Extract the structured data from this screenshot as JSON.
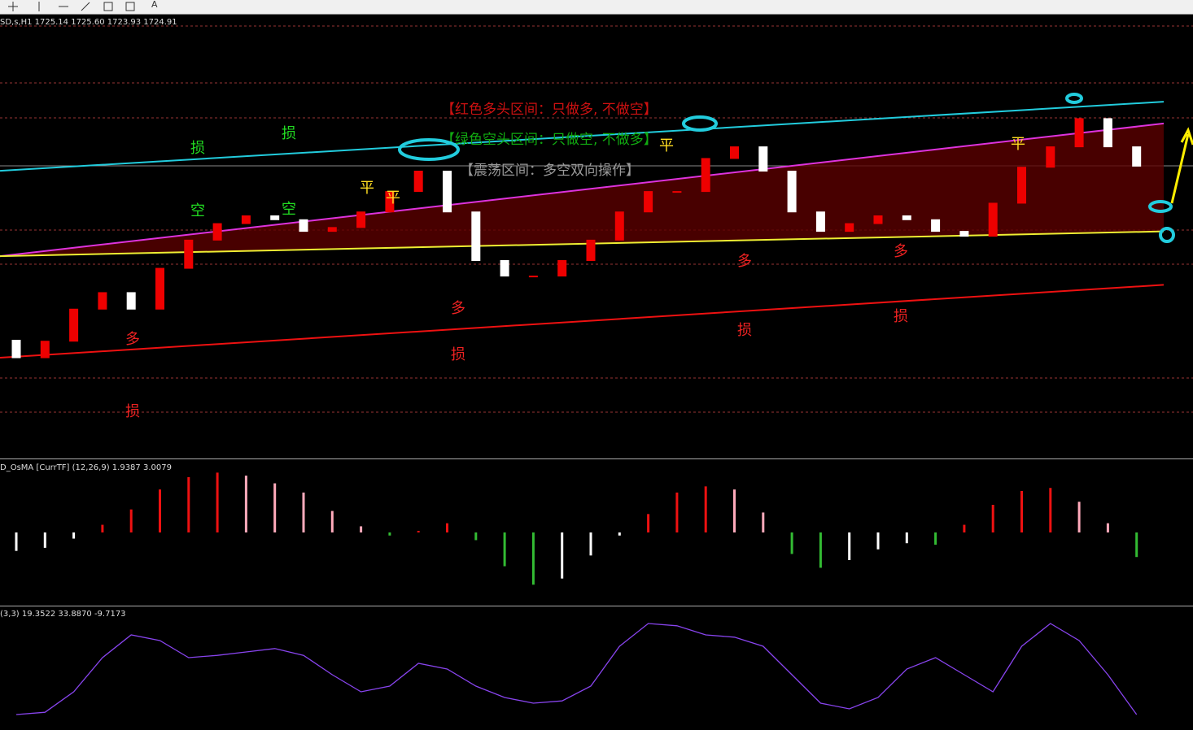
{
  "toolbar": {
    "text_tool": "A"
  },
  "main_panel": {
    "legend": "SD,s,H1  1725.14 1725.60 1723.93 1724.91",
    "ylim": [
      1695,
      1740.5
    ],
    "open": [
      1707.0,
      1705.2,
      1706.9,
      1710.2,
      1711.9,
      1710.2,
      1714.4,
      1717.3,
      1719.0,
      1719.8,
      1719.4,
      1718.2,
      1718.6,
      1720.2,
      1722.3,
      1724.4,
      1720.2,
      1715.2,
      1713.6,
      1713.6,
      1715.2,
      1717.3,
      1720.2,
      1722.3,
      1722.3,
      1725.7,
      1726.9,
      1724.4,
      1720.2,
      1718.2,
      1719.0,
      1719.8,
      1719.4,
      1718.2,
      1717.7,
      1721.1,
      1724.8,
      1726.9,
      1729.8,
      1726.9
    ],
    "close": [
      1705.2,
      1706.9,
      1710.2,
      1711.9,
      1710.2,
      1714.4,
      1717.3,
      1719.0,
      1719.8,
      1719.4,
      1718.2,
      1718.6,
      1720.2,
      1722.3,
      1724.4,
      1720.2,
      1715.2,
      1713.6,
      1713.6,
      1715.2,
      1717.3,
      1720.2,
      1722.3,
      1722.3,
      1725.7,
      1726.9,
      1724.4,
      1720.2,
      1718.2,
      1719.0,
      1719.8,
      1719.4,
      1718.2,
      1717.7,
      1721.1,
      1724.8,
      1726.9,
      1729.8,
      1726.9,
      1724.91
    ],
    "bands": [
      {
        "color": "#22ccdd",
        "values": [
          1724.43,
          1731.54
        ]
      },
      {
        "color": "#ee1111",
        "values": [
          1705.2,
          1712.7
        ]
      },
      {
        "color": "#dd33dd",
        "values": [
          1715.65,
          1729.3
        ]
      },
      {
        "color": "#eeee33",
        "values": [
          1715.65,
          1718.2
        ]
      }
    ]
  },
  "annotations": {
    "bull_zone": "【红色多头区间：只做多, 不做空】",
    "bear_zone": "【绿色空头区间：只做空, 不做多】",
    "range_zone": "【震荡区间：多空双向操作】",
    "labels": [
      "损",
      "损",
      "损",
      "损",
      "损",
      "损",
      "多",
      "多",
      "多",
      "多",
      "空",
      "空",
      "平",
      "平",
      "平",
      "平"
    ]
  },
  "osma_panel": {
    "legend": "D_OsMA [CurrTF] (12,26,9) 1.9387 3.0079",
    "ylim": [
      -4.5,
      4.5
    ],
    "values": [
      -1.2,
      -1.0,
      -0.4,
      0.5,
      1.5,
      2.8,
      3.6,
      3.9,
      3.7,
      3.2,
      2.6,
      1.4,
      0.4,
      -0.2,
      0.1,
      0.6,
      -0.5,
      -2.2,
      -3.4,
      -3.0,
      -1.5,
      -0.2,
      1.2,
      2.6,
      3.0,
      2.8,
      1.3,
      -1.4,
      -2.3,
      -1.8,
      -1.1,
      -0.7,
      -0.8,
      0.5,
      1.8,
      2.7,
      2.9,
      2.0,
      0.6,
      -1.6
    ]
  },
  "stoch_panel": {
    "legend": "(3,3) 19.3522 33.8870 -9.7173",
    "ylim": [
      0,
      100
    ],
    "values": [
      10,
      12,
      30,
      60,
      80,
      75,
      60,
      62,
      65,
      68,
      62,
      45,
      30,
      35,
      55,
      50,
      35,
      25,
      20,
      22,
      35,
      70,
      90,
      88,
      80,
      78,
      70,
      45,
      20,
      15,
      25,
      50,
      60,
      45,
      30,
      70,
      90,
      75,
      45,
      10
    ]
  }
}
